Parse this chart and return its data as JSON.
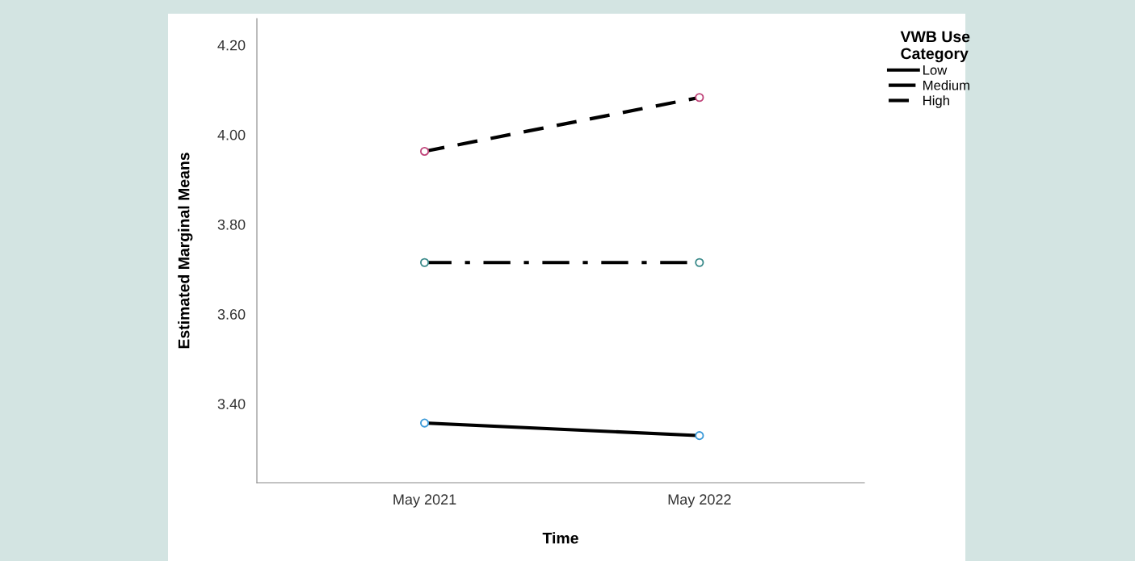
{
  "chart_data": {
    "type": "line",
    "xlabel": "Time",
    "ylabel": "Estimated Marginal Means",
    "legend_title": "VWB Use\nCategory",
    "legend": "top right",
    "grid": false,
    "marker": "circle",
    "categories": [
      "May 2021",
      "May 2022"
    ],
    "ylim": [
      3.224,
      4.259
    ],
    "yticks": [
      {
        "value": 3.4,
        "label": "3.40"
      },
      {
        "value": 3.6,
        "label": "3.60"
      },
      {
        "value": 3.8,
        "label": "3.80"
      },
      {
        "value": 4.0,
        "label": "4.00"
      },
      {
        "value": 4.2,
        "label": "4.20"
      }
    ],
    "series": [
      {
        "name": "Low",
        "color": "#000000",
        "colors": [
          "#3b9ad9",
          "#3b9ad9"
        ],
        "line_style": "solid",
        "values": [
          3.357,
          3.329
        ]
      },
      {
        "name": "Medium",
        "color": "#000000",
        "colors": [
          "#3a8a8a",
          "#3a8a8a"
        ],
        "line_style": "dashdot",
        "values": [
          3.715,
          3.715
        ]
      },
      {
        "name": "High",
        "color": "#000000",
        "colors": [
          "#c0457a",
          "#c0457a"
        ],
        "line_style": "dashed",
        "values": [
          3.963,
          4.083
        ]
      }
    ]
  }
}
